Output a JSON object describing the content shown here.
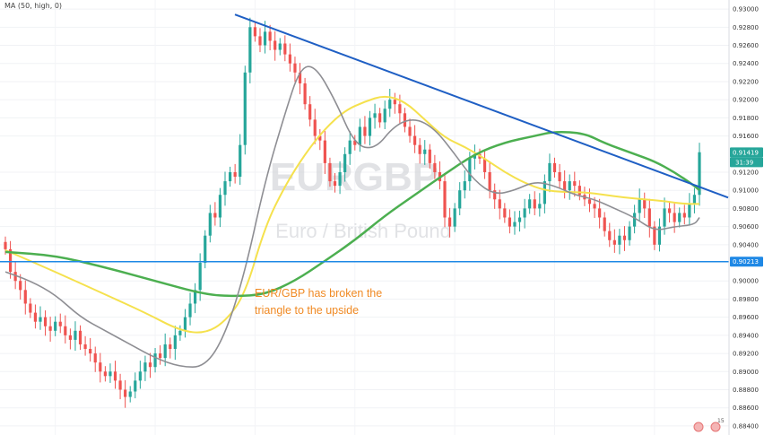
{
  "indicator_label": "MA (50, high, 0)",
  "watermark": {
    "symbol": "EURGBP",
    "name": "Euro / British Pound"
  },
  "annotation": {
    "line1": "EUR/GBP has broken the",
    "line2": "triangle to the upside"
  },
  "price_badges": [
    {
      "label": "0.91419",
      "color": "#26a69a"
    },
    {
      "label": "31:39",
      "color": "#26a69a"
    },
    {
      "label": "0.90213",
      "color": "#1e88e5"
    }
  ],
  "corner_badge": "15",
  "colors": {
    "up": "#26a69a",
    "down": "#ef5350",
    "ma_yellow": "#f5e14d",
    "ma_green": "#4caf50",
    "ma_gray": "#8e8e93",
    "trendline": "#1f5fc4",
    "support": "#1e88e5"
  },
  "chart_data": {
    "type": "candlestick",
    "symbol": "EURGBP",
    "ylim": [
      0.883,
      0.931
    ],
    "y_ticks": [
      "0.93000",
      "0.92800",
      "0.92600",
      "0.92400",
      "0.92200",
      "0.92000",
      "0.91800",
      "0.91600",
      "0.91200",
      "0.91000",
      "0.90800",
      "0.90600",
      "0.90400",
      "0.90000",
      "0.89800",
      "0.89600",
      "0.89400",
      "0.89200",
      "0.89000",
      "0.88800",
      "0.88600",
      "0.88400"
    ],
    "n_bars": 140,
    "closes": [
      0.9035,
      0.901,
      0.9,
      0.899,
      0.8975,
      0.8965,
      0.8955,
      0.896,
      0.895,
      0.8945,
      0.8955,
      0.895,
      0.894,
      0.8935,
      0.8945,
      0.893,
      0.8925,
      0.892,
      0.891,
      0.89,
      0.8895,
      0.89,
      0.889,
      0.888,
      0.8872,
      0.8878,
      0.889,
      0.89,
      0.891,
      0.8905,
      0.892,
      0.8915,
      0.893,
      0.8925,
      0.894,
      0.8945,
      0.896,
      0.8975,
      0.899,
      0.902,
      0.905,
      0.9075,
      0.907,
      0.9095,
      0.911,
      0.912,
      0.9115,
      0.915,
      0.923,
      0.928,
      0.927,
      0.926,
      0.9275,
      0.9265,
      0.9255,
      0.9262,
      0.925,
      0.924,
      0.923,
      0.9218,
      0.9195,
      0.9178,
      0.916,
      0.9155,
      0.913,
      0.911,
      0.9105,
      0.912,
      0.914,
      0.9155,
      0.915,
      0.917,
      0.916,
      0.918,
      0.9185,
      0.9175,
      0.919,
      0.92,
      0.9195,
      0.9185,
      0.917,
      0.916,
      0.915,
      0.914,
      0.9145,
      0.913,
      0.912,
      0.911,
      0.907,
      0.906,
      0.908,
      0.91,
      0.911,
      0.9135,
      0.914,
      0.9135,
      0.912,
      0.91,
      0.909,
      0.908,
      0.907,
      0.906,
      0.9065,
      0.907,
      0.908,
      0.909,
      0.908,
      0.9085,
      0.911,
      0.913,
      0.912,
      0.911,
      0.91,
      0.911,
      0.9105,
      0.9095,
      0.909,
      0.9085,
      0.908,
      0.907,
      0.9055,
      0.9045,
      0.904,
      0.905,
      0.9045,
      0.906,
      0.9075,
      0.909,
      0.908,
      0.906,
      0.904,
      0.906,
      0.908,
      0.9075,
      0.9065,
      0.9075,
      0.907,
      0.9085,
      0.9095,
      0.9142
    ],
    "series": [
      {
        "name": "MA (50, high, 0)",
        "values": [
          [
            0,
            0.9034
          ],
          [
            10,
            0.901
          ],
          [
            20,
            0.8985
          ],
          [
            28,
            0.8965
          ],
          [
            35,
            0.8945
          ],
          [
            40,
            0.8942
          ],
          [
            44,
            0.8955
          ],
          [
            48,
            0.8985
          ],
          [
            52,
            0.906
          ],
          [
            56,
            0.9105
          ],
          [
            60,
            0.914
          ],
          [
            64,
            0.9168
          ],
          [
            68,
            0.9188
          ],
          [
            72,
            0.9198
          ],
          [
            76,
            0.9205
          ],
          [
            80,
            0.9198
          ],
          [
            84,
            0.9178
          ],
          [
            88,
            0.9158
          ],
          [
            92,
            0.9148
          ],
          [
            96,
            0.9135
          ],
          [
            100,
            0.912
          ],
          [
            104,
            0.9108
          ],
          [
            108,
            0.91
          ],
          [
            112,
            0.9098
          ],
          [
            116,
            0.9098
          ],
          [
            120,
            0.9095
          ],
          [
            124,
            0.9092
          ],
          [
            128,
            0.909
          ],
          [
            132,
            0.9088
          ],
          [
            136,
            0.9085
          ],
          [
            139,
            0.9085
          ]
        ]
      },
      {
        "name": "",
        "values": [
          [
            0,
            0.9032
          ],
          [
            10,
            0.9028
          ],
          [
            20,
            0.9015
          ],
          [
            30,
            0.9
          ],
          [
            40,
            0.8985
          ],
          [
            46,
            0.8983
          ],
          [
            52,
            0.8985
          ],
          [
            58,
            0.9
          ],
          [
            64,
            0.9022
          ],
          [
            70,
            0.9045
          ],
          [
            76,
            0.9072
          ],
          [
            82,
            0.9095
          ],
          [
            88,
            0.9118
          ],
          [
            94,
            0.914
          ],
          [
            100,
            0.9153
          ],
          [
            106,
            0.916
          ],
          [
            110,
            0.9165
          ],
          [
            116,
            0.9163
          ],
          [
            120,
            0.9152
          ],
          [
            126,
            0.914
          ],
          [
            130,
            0.9132
          ],
          [
            134,
            0.912
          ],
          [
            138,
            0.9105
          ],
          [
            139,
            0.91
          ]
        ]
      },
      {
        "name": "",
        "values": [
          [
            0,
            0.901
          ],
          [
            5,
            0.9
          ],
          [
            10,
            0.8985
          ],
          [
            15,
            0.896
          ],
          [
            20,
            0.8945
          ],
          [
            25,
            0.893
          ],
          [
            30,
            0.8915
          ],
          [
            35,
            0.8905
          ],
          [
            40,
            0.8905
          ],
          [
            44,
            0.894
          ],
          [
            48,
            0.901
          ],
          [
            52,
            0.911
          ],
          [
            56,
            0.9185
          ],
          [
            59,
            0.9235
          ],
          [
            62,
            0.9238
          ],
          [
            66,
            0.92
          ],
          [
            70,
            0.915
          ],
          [
            74,
            0.9145
          ],
          [
            78,
            0.9172
          ],
          [
            82,
            0.918
          ],
          [
            86,
            0.9168
          ],
          [
            90,
            0.914
          ],
          [
            94,
            0.911
          ],
          [
            98,
            0.9095
          ],
          [
            102,
            0.91
          ],
          [
            106,
            0.911
          ],
          [
            110,
            0.9105
          ],
          [
            114,
            0.9095
          ],
          [
            118,
            0.909
          ],
          [
            122,
            0.908
          ],
          [
            126,
            0.907
          ],
          [
            130,
            0.9055
          ],
          [
            134,
            0.906
          ],
          [
            138,
            0.9062
          ],
          [
            139,
            0.907
          ]
        ]
      }
    ],
    "trendline": [
      [
        0.929,
        0.9294
      ],
      [
        0.985,
        0.9092
      ]
    ],
    "support": 0.90213,
    "last_price": 0.91419
  }
}
